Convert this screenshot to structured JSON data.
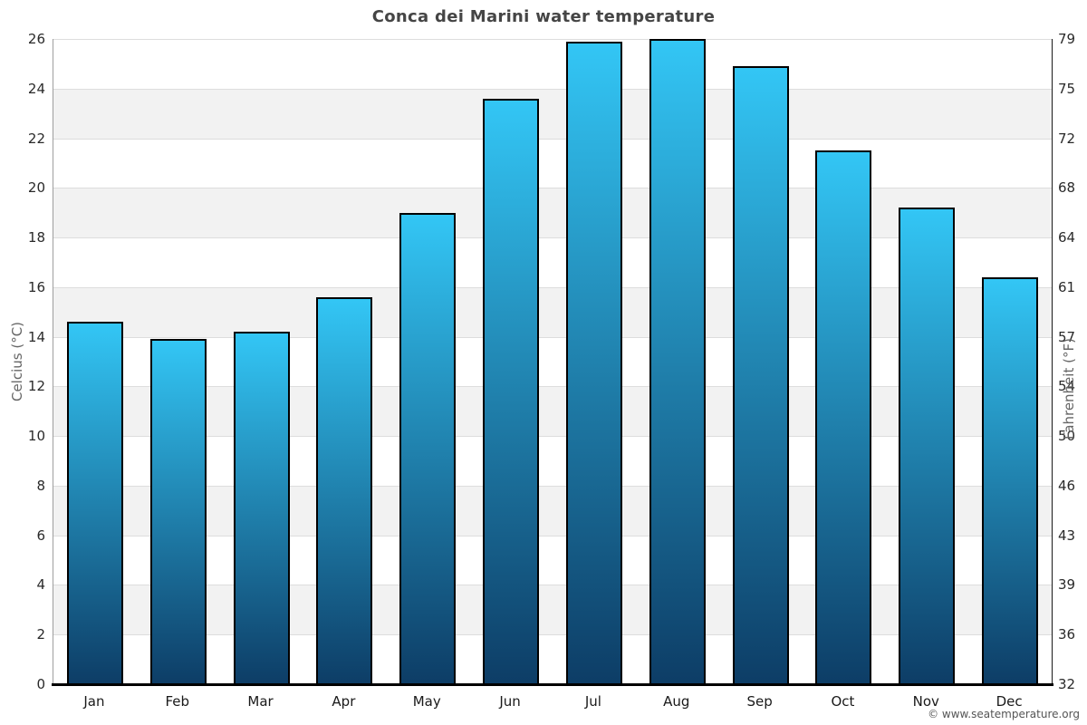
{
  "chart_data": {
    "type": "bar",
    "title": "Conca dei Marini water temperature",
    "categories": [
      "Jan",
      "Feb",
      "Mar",
      "Apr",
      "May",
      "Jun",
      "Jul",
      "Aug",
      "Sep",
      "Oct",
      "Nov",
      "Dec"
    ],
    "values": [
      14.6,
      13.9,
      14.2,
      15.6,
      19.0,
      23.6,
      25.9,
      26.0,
      24.9,
      21.5,
      19.2,
      16.4
    ],
    "ylabel_left": "Celcius (°C)",
    "ylabel_right": "Fahrenheit (°F)",
    "ylim": [
      0,
      26
    ],
    "yticks_celsius": [
      0,
      2,
      4,
      6,
      8,
      10,
      12,
      14,
      16,
      18,
      20,
      22,
      24,
      26
    ],
    "yticks_fahrenheit": [
      32,
      36,
      39,
      43,
      46,
      50,
      54,
      57,
      61,
      64,
      68,
      72,
      75,
      79
    ],
    "grid": "horizontal-bands",
    "legend": "none",
    "colors": {
      "bar_top": "#33c6f5",
      "bar_bottom": "#0d3d66",
      "bar_border": "#000000",
      "band_light": "#ffffff",
      "band_dark": "#f2f2f2",
      "gridline": "#dddddd"
    }
  },
  "footer": {
    "copyright": "© www.seatemperature.org"
  }
}
